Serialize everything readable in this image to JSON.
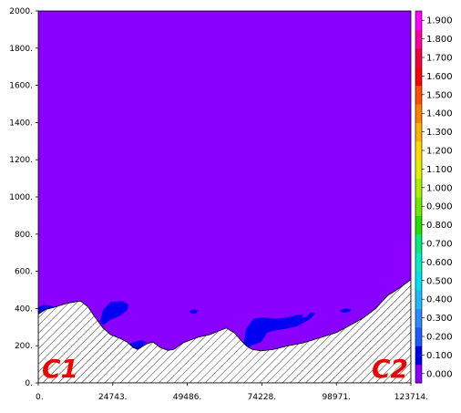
{
  "chart_data": {
    "type": "heatmap",
    "x_ticks": [
      "0.",
      "24743.",
      "49486.",
      "74228.",
      "98971.",
      "123714."
    ],
    "x_range": [
      0,
      123714
    ],
    "y_ticks": [
      "0.",
      "200.",
      "400.",
      "600.",
      "800.",
      "1000.",
      "1200.",
      "1400.",
      "1600.",
      "1800.",
      "2000."
    ],
    "y_range": [
      0,
      2000
    ],
    "colorbar": {
      "labels": [
        "0.000",
        "0.100",
        "0.200",
        "0.300",
        "0.400",
        "0.500",
        "0.600",
        "0.700",
        "0.800",
        "0.900",
        "1.000",
        "1.100",
        "1.200",
        "1.300",
        "1.400",
        "1.500",
        "1.600",
        "1.700",
        "1.800",
        "1.900"
      ],
      "colors": [
        "#8a00ff",
        "#0000f0",
        "#1e5cff",
        "#2a8cff",
        "#20b8ff",
        "#00e0ee",
        "#00eec8",
        "#00ee80",
        "#20e000",
        "#70e800",
        "#a8f000",
        "#e0f000",
        "#ffd800",
        "#ffb000",
        "#ff8000",
        "#ff5000",
        "#ff0000",
        "#f00040",
        "#ff00a0",
        "#ff00ff"
      ]
    },
    "background_value": 0.0,
    "background_color": "#8a00ff",
    "contour_color": "#0000f0",
    "contour_level": 0.1,
    "terrain_profile": [
      [
        0,
        370
      ],
      [
        2500,
        395
      ],
      [
        5000,
        405
      ],
      [
        10000,
        430
      ],
      [
        14000,
        440
      ],
      [
        16500,
        410
      ],
      [
        19000,
        350
      ],
      [
        21500,
        295
      ],
      [
        24000,
        260
      ],
      [
        27000,
        240
      ],
      [
        29500,
        220
      ],
      [
        31500,
        190
      ],
      [
        33000,
        180
      ],
      [
        36000,
        210
      ],
      [
        38000,
        220
      ],
      [
        40500,
        190
      ],
      [
        43000,
        175
      ],
      [
        45000,
        180
      ],
      [
        48000,
        215
      ],
      [
        53000,
        245
      ],
      [
        57000,
        260
      ],
      [
        60000,
        280
      ],
      [
        62500,
        295
      ],
      [
        65000,
        270
      ],
      [
        67000,
        235
      ],
      [
        69000,
        200
      ],
      [
        71000,
        180
      ],
      [
        74000,
        172
      ],
      [
        78000,
        180
      ],
      [
        83000,
        200
      ],
      [
        88000,
        215
      ],
      [
        93000,
        240
      ],
      [
        98971,
        270
      ],
      [
        103000,
        305
      ],
      [
        108000,
        350
      ],
      [
        112000,
        400
      ],
      [
        116000,
        470
      ],
      [
        119000,
        500
      ],
      [
        123714,
        555
      ]
    ],
    "regions_above_threshold": [
      {
        "points": [
          [
            0,
            405
          ],
          [
            1500,
            420
          ],
          [
            4000,
            415
          ],
          [
            6000,
            405
          ],
          [
            9000,
            420
          ],
          [
            11000,
            435
          ],
          [
            13000,
            440
          ],
          [
            14000,
            440
          ],
          [
            10000,
            430
          ],
          [
            5000,
            405
          ],
          [
            2500,
            395
          ],
          [
            0,
            370
          ]
        ]
      },
      {
        "points": [
          [
            20500,
            330
          ],
          [
            21500,
            390
          ],
          [
            24000,
            435
          ],
          [
            28000,
            440
          ],
          [
            30000,
            420
          ],
          [
            29500,
            390
          ],
          [
            27000,
            360
          ],
          [
            24000,
            340
          ],
          [
            21500,
            310
          ]
        ]
      },
      {
        "points": [
          [
            50000,
            385
          ],
          [
            51500,
            395
          ],
          [
            53000,
            390
          ],
          [
            52500,
            375
          ],
          [
            51000,
            372
          ]
        ]
      },
      {
        "points": [
          [
            68000,
            190
          ],
          [
            69000,
            290
          ],
          [
            71500,
            345
          ],
          [
            74000,
            352
          ],
          [
            76000,
            350
          ],
          [
            78500,
            345
          ],
          [
            82000,
            350
          ],
          [
            86000,
            365
          ],
          [
            88000,
            370
          ],
          [
            87500,
            350
          ],
          [
            89000,
            355
          ],
          [
            90500,
            380
          ],
          [
            92000,
            375
          ],
          [
            90000,
            340
          ],
          [
            86000,
            305
          ],
          [
            82000,
            290
          ],
          [
            78000,
            280
          ],
          [
            76000,
            270
          ],
          [
            74000,
            220
          ],
          [
            70000,
            195
          ]
        ]
      },
      {
        "points": [
          [
            100000,
            390
          ],
          [
            102000,
            400
          ],
          [
            104000,
            395
          ],
          [
            103000,
            380
          ],
          [
            101000,
            378
          ]
        ]
      },
      {
        "points": [
          [
            28500,
            195
          ],
          [
            31000,
            215
          ],
          [
            34000,
            230
          ],
          [
            36000,
            220
          ],
          [
            33000,
            180
          ],
          [
            31500,
            190
          ]
        ]
      }
    ],
    "annotations": [
      "C1",
      "C2"
    ],
    "annotation_color": "#ee0000"
  }
}
